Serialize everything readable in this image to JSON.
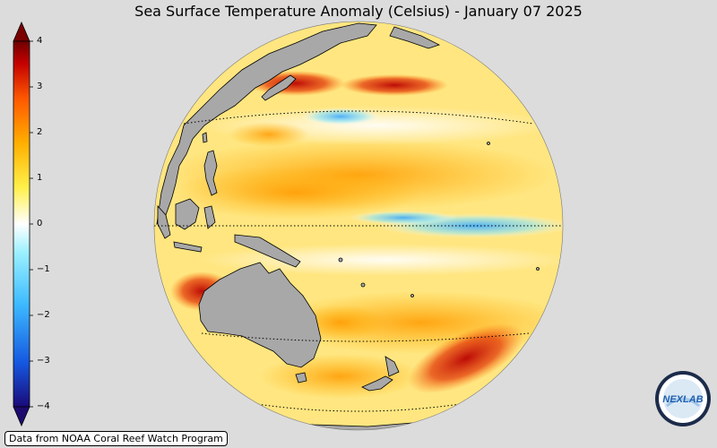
{
  "title": "Sea Surface Temperature Anomaly (Celsius) - January 07 2025",
  "colorbar": {
    "ticks": [
      "4",
      "3",
      "2",
      "1",
      "0",
      "−1",
      "−2",
      "−3",
      "−4"
    ],
    "colors": [
      "#1a0a78",
      "#1557e0",
      "#3dbaff",
      "#9af0ff",
      "#ffffff",
      "#fff04a",
      "#ffb000",
      "#ff5a00",
      "#c40000",
      "#6e0000"
    ]
  },
  "map": {
    "land_color": "#a8a8a8",
    "ocean_base": "#fff0a0"
  },
  "credit": "Data from NOAA Coral Reef Watch Program",
  "logo": {
    "text": "NEXLAB",
    "icon": "nexlab-logo-icon"
  }
}
